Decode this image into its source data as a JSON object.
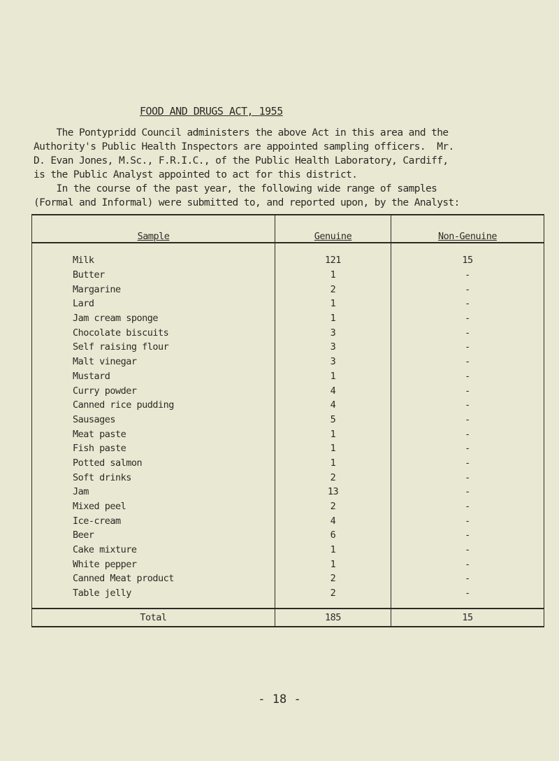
{
  "title": "FOOD AND DRUGS ACT, 1955",
  "paragraph1": "    The Pontypridd Council administers the above Act in this area and the\nAuthority's Public Health Inspectors are appointed sampling officers.  Mr.\nD. Evan Jones, M.Sc., F.R.I.C., of the Public Health Laboratory, Cardiff,\nis the Public Analyst appointed to act for this district.",
  "paragraph2": "    In the course of the past year, the following wide range of samples\n(Formal and Informal) were submitted to, and reported upon, by the Analyst:",
  "table": {
    "headers": [
      "Sample",
      "Genuine",
      "Non-Genuine"
    ],
    "rows": [
      [
        "Milk",
        "121",
        "15"
      ],
      [
        "Butter",
        "1",
        "-"
      ],
      [
        "Margarine",
        "2",
        "-"
      ],
      [
        "Lard",
        "1",
        "-"
      ],
      [
        "Jam cream sponge",
        "1",
        "-"
      ],
      [
        "Chocolate biscuits",
        "3",
        "-"
      ],
      [
        "Self raising flour",
        "3",
        "-"
      ],
      [
        "Malt vinegar",
        "3",
        "-"
      ],
      [
        "Mustard",
        "1",
        "-"
      ],
      [
        "Curry powder",
        "4",
        "-"
      ],
      [
        "Canned rice pudding",
        "4",
        "-"
      ],
      [
        "Sausages",
        "5",
        "-"
      ],
      [
        "Meat paste",
        "1",
        "-"
      ],
      [
        "Fish paste",
        "1",
        "-"
      ],
      [
        "Potted salmon",
        "1",
        "-"
      ],
      [
        "Soft drinks",
        "2",
        "-"
      ],
      [
        "Jam",
        "13",
        "-"
      ],
      [
        "Mixed peel",
        "2",
        "-"
      ],
      [
        "Ice-cream",
        "4",
        "-"
      ],
      [
        "Beer",
        "6",
        "-"
      ],
      [
        "Cake mixture",
        "1",
        "-"
      ],
      [
        "White pepper",
        "1",
        "-"
      ],
      [
        "Canned Meat product",
        "2",
        "-"
      ],
      [
        "Table jelly",
        "2",
        "-"
      ]
    ],
    "total": [
      "Total",
      "185",
      "15"
    ]
  },
  "page_number": "- 18 -"
}
